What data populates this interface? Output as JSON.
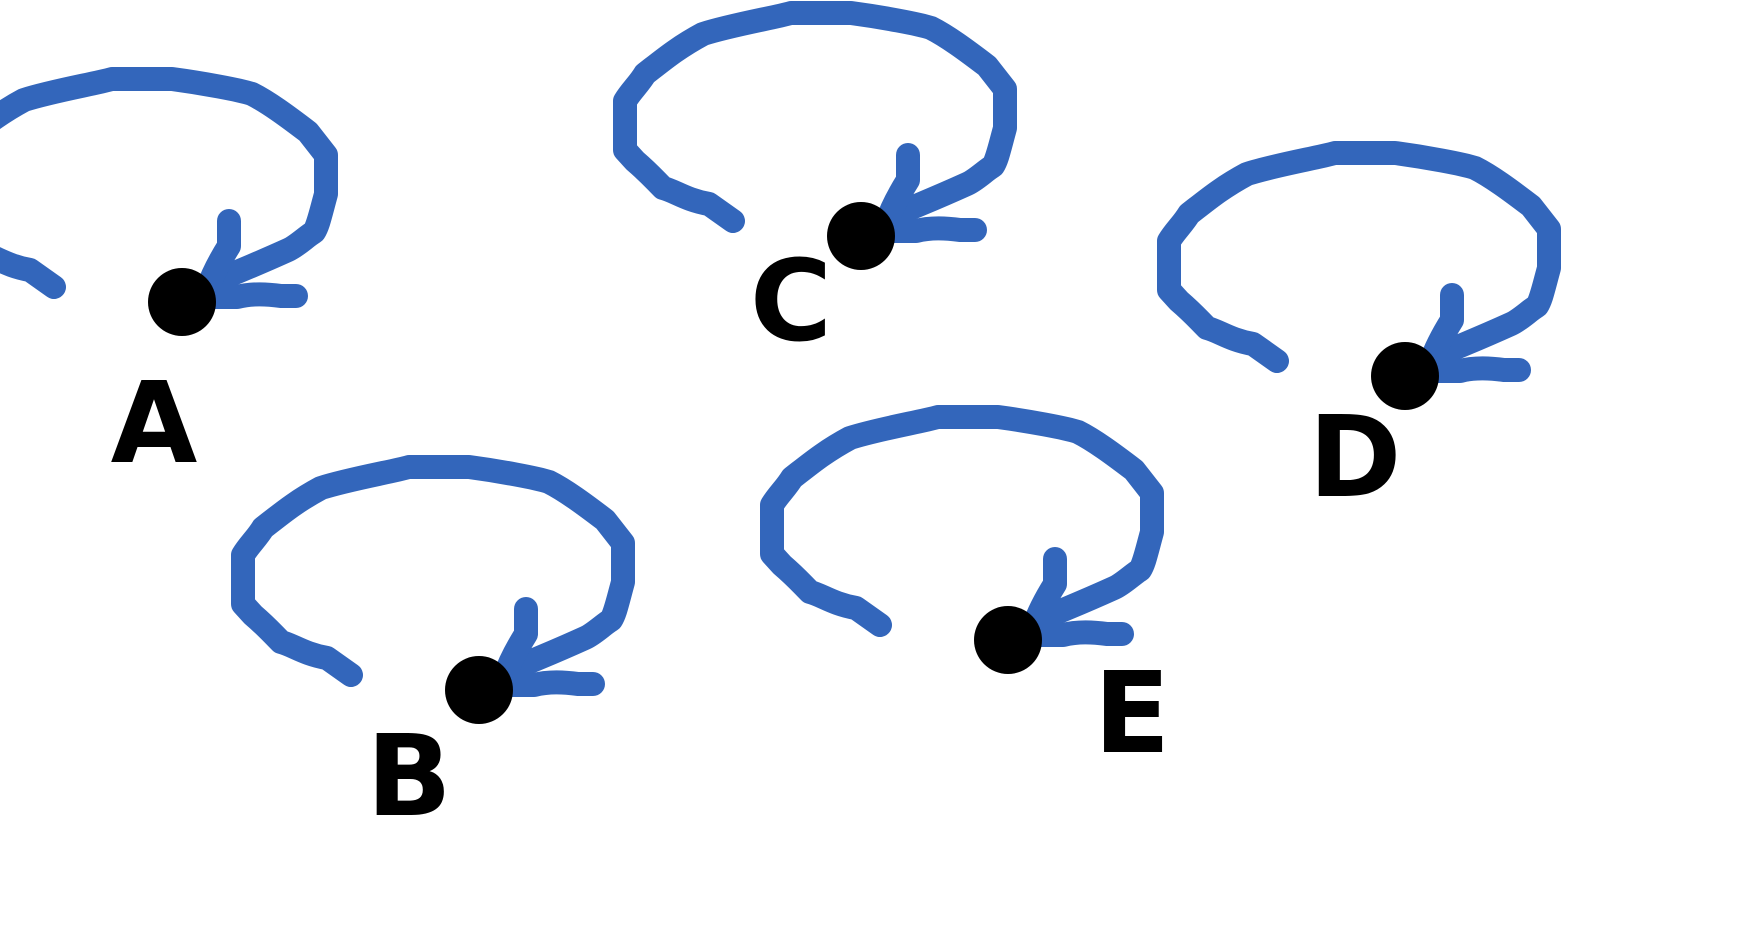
{
  "colors": {
    "stroke": "#3366BB",
    "dot": "#000000",
    "background": "#FFFFFF"
  },
  "motifs": [
    {
      "label": "A"
    },
    {
      "label": "B"
    },
    {
      "label": "C"
    },
    {
      "label": "D"
    },
    {
      "label": "E"
    }
  ]
}
